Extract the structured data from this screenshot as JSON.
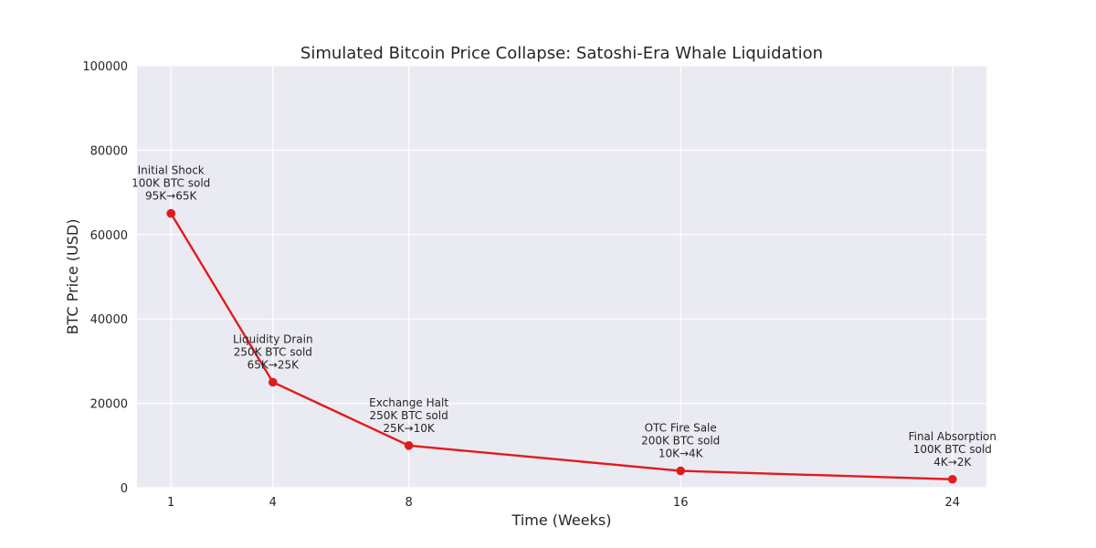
{
  "chart_data": {
    "type": "line",
    "title": "Simulated Bitcoin Price Collapse: Satoshi-Era Whale Liquidation",
    "xlabel": "Time (Weeks)",
    "ylabel": "BTC Price (USD)",
    "xlim": [
      0,
      25
    ],
    "ylim": [
      0,
      100000
    ],
    "xticks": [
      1,
      4,
      8,
      16,
      24
    ],
    "xtick_labels": [
      "1",
      "4",
      "8",
      "16",
      "24"
    ],
    "yticks": [
      0,
      20000,
      40000,
      60000,
      80000,
      100000
    ],
    "ytick_labels": [
      "0",
      "20000",
      "40000",
      "60000",
      "80000",
      "100000"
    ],
    "grid": true,
    "series": [
      {
        "color": "#e31a1c",
        "x": [
          1,
          4,
          8,
          16,
          24
        ],
        "y": [
          65000,
          25000,
          10000,
          4000,
          2000
        ]
      }
    ],
    "annotations": [
      {
        "x": 1,
        "y": 65000,
        "lines": [
          "Initial Shock",
          "100K BTC sold",
          "95K→65K"
        ]
      },
      {
        "x": 4,
        "y": 25000,
        "lines": [
          "Liquidity Drain",
          "250K BTC sold",
          "65K→25K"
        ]
      },
      {
        "x": 8,
        "y": 10000,
        "lines": [
          "Exchange Halt",
          "250K BTC sold",
          "25K→10K"
        ]
      },
      {
        "x": 16,
        "y": 4000,
        "lines": [
          "OTC Fire Sale",
          "200K BTC sold",
          "10K→4K"
        ]
      },
      {
        "x": 24,
        "y": 2000,
        "lines": [
          "Final Absorption",
          "100K BTC sold",
          "4K→2K"
        ]
      }
    ],
    "colors": {
      "background": "#eaeaf2",
      "grid": "#ffffff",
      "line": "#e31a1c"
    }
  }
}
